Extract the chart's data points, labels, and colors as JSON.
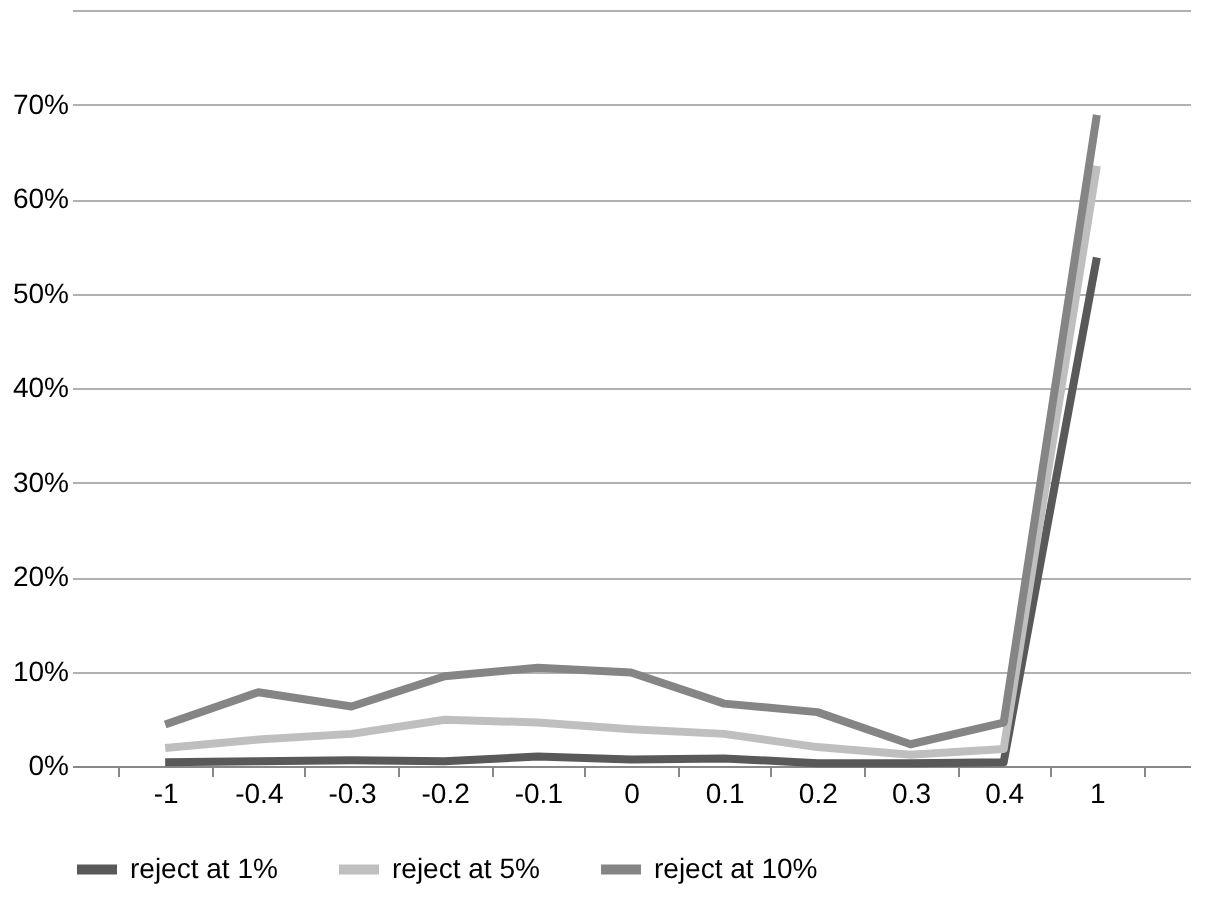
{
  "chart_data": {
    "type": "line",
    "categories": [
      "-1",
      "-0.4",
      "-0.3",
      "-0.2",
      "-0.1",
      "0",
      "0.1",
      "0.2",
      "0.3",
      "0.4",
      "1"
    ],
    "series": [
      {
        "name": "reject at 1%",
        "color": "#595959",
        "values": [
          0.4,
          0.5,
          0.6,
          0.5,
          1.0,
          0.7,
          0.8,
          0.3,
          0.3,
          0.4,
          53.8
        ]
      },
      {
        "name": "reject at 5%",
        "color": "#bfbfbf",
        "values": [
          1.9,
          2.8,
          3.4,
          4.9,
          4.6,
          3.9,
          3.4,
          2.0,
          1.2,
          1.8,
          63.5
        ]
      },
      {
        "name": "reject at 10%",
        "color": "#858585",
        "values": [
          4.4,
          7.8,
          6.3,
          9.5,
          10.4,
          9.9,
          6.6,
          5.7,
          2.3,
          4.6,
          68.9
        ]
      }
    ],
    "ylim": [
      0,
      80
    ],
    "yticks": [
      {
        "value": 0,
        "label": "0%"
      },
      {
        "value": 10,
        "label": "10%"
      },
      {
        "value": 20,
        "label": "20%"
      },
      {
        "value": 30,
        "label": "30%"
      },
      {
        "value": 40,
        "label": "40%"
      },
      {
        "value": 50,
        "label": "50%"
      },
      {
        "value": 60,
        "label": "60%"
      },
      {
        "value": 70,
        "label": "70%"
      },
      {
        "value": 80,
        "label": null
      }
    ],
    "grid": "y",
    "legend": "bottom",
    "marker": "none",
    "line_style": "solid"
  }
}
